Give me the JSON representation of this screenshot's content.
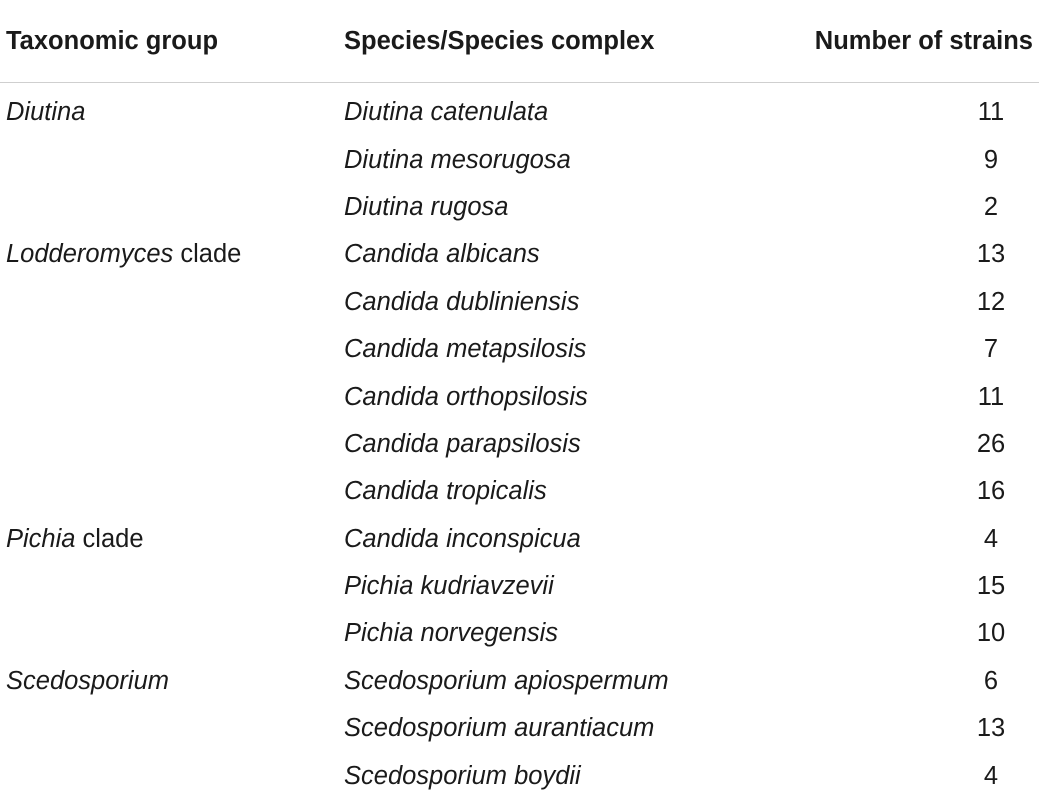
{
  "headers": {
    "group": "Taxonomic group",
    "species": "Species/Species complex",
    "count": "Number of strains"
  },
  "rows": [
    {
      "group_it": "Diutina",
      "group_rest": "",
      "species": "Diutina catenulata",
      "count": "11"
    },
    {
      "group_it": "",
      "group_rest": "",
      "species": "Diutina mesorugosa",
      "count": "9"
    },
    {
      "group_it": "",
      "group_rest": "",
      "species": "Diutina rugosa",
      "count": "2"
    },
    {
      "group_it": "Lodderomyces",
      "group_rest": " clade",
      "species": "Candida albicans",
      "count": "13"
    },
    {
      "group_it": "",
      "group_rest": "",
      "species": "Candida dubliniensis",
      "count": "12"
    },
    {
      "group_it": "",
      "group_rest": "",
      "species": "Candida metapsilosis",
      "count": "7"
    },
    {
      "group_it": "",
      "group_rest": "",
      "species": "Candida orthopsilosis",
      "count": "11"
    },
    {
      "group_it": "",
      "group_rest": "",
      "species": "Candida parapsilosis",
      "count": "26"
    },
    {
      "group_it": "",
      "group_rest": "",
      "species": "Candida tropicalis",
      "count": "16"
    },
    {
      "group_it": "Pichia",
      "group_rest": " clade",
      "species": "Candida inconspicua",
      "count": "4"
    },
    {
      "group_it": "",
      "group_rest": "",
      "species": "Pichia kudriavzevii",
      "count": "15"
    },
    {
      "group_it": "",
      "group_rest": "",
      "species": "Pichia norvegensis",
      "count": "10"
    },
    {
      "group_it": "Scedosporium",
      "group_rest": "",
      "species": "Scedosporium apiospermum",
      "count": "6"
    },
    {
      "group_it": "",
      "group_rest": "",
      "species": "Scedosporium aurantiacum",
      "count": "13"
    },
    {
      "group_it": "",
      "group_rest": "",
      "species": "Scedosporium boydii",
      "count": "4"
    }
  ]
}
